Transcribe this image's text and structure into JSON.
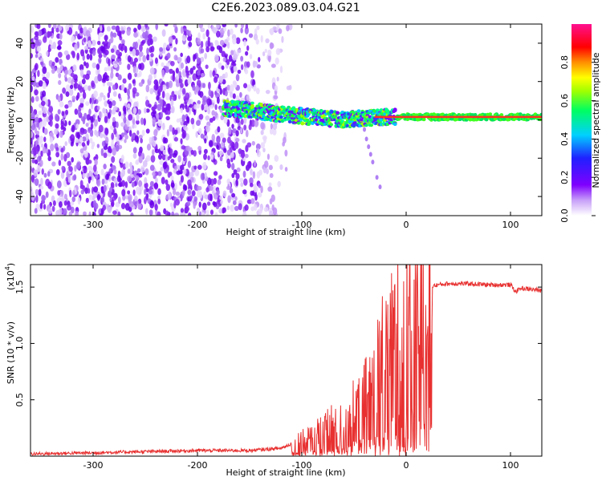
{
  "title": "C2E6.2023.089.03.04.G21",
  "chart_data": [
    {
      "type": "heatmap",
      "xlabel": "Height of straight line (km)",
      "ylabel": "Frequency (Hz)",
      "xlim": [
        -360,
        130
      ],
      "ylim": [
        -50,
        50
      ],
      "xticks": [
        "-300",
        "-200",
        "-100",
        "0",
        "100"
      ],
      "yticks": [
        "-40",
        "-20",
        "0",
        "20",
        "40"
      ],
      "colorbar": {
        "label": "Normalized spectral amplitude",
        "range": [
          0.0,
          1.0
        ],
        "ticks": [
          "0.0",
          "0.2",
          "0.4",
          "0.6",
          "0.8"
        ],
        "colormap": "white-purple-blue-cyan-green-yellow-orange-red-magenta"
      },
      "features": {
        "noise_region_x": [
          -360,
          -130
        ],
        "signal_band": [
          {
            "x": -175,
            "y": 6
          },
          {
            "x": -150,
            "y": 5
          },
          {
            "x": -120,
            "y": 3
          },
          {
            "x": -100,
            "y": 2
          },
          {
            "x": -80,
            "y": 1
          },
          {
            "x": -60,
            "y": 0
          },
          {
            "x": -40,
            "y": 1
          },
          {
            "x": -20,
            "y": 1.5
          },
          {
            "x": 0,
            "y": 1.5
          },
          {
            "x": 50,
            "y": 1.5
          },
          {
            "x": 100,
            "y": 1.5
          },
          {
            "x": 130,
            "y": 1.5
          }
        ]
      }
    },
    {
      "type": "line",
      "xlabel": "Height of straight line (km)",
      "ylabel": "SNR (10 * v/v)",
      "multiplier_label": "(x10",
      "multiplier_exp": "4",
      "multiplier_close": ")",
      "xlim": [
        -360,
        130
      ],
      "ylim": [
        0,
        1.7
      ],
      "xticks": [
        "-300",
        "-200",
        "-100",
        "0",
        "100"
      ],
      "yticks": [
        "0.5",
        "1.0",
        "1.5"
      ],
      "color": "#e83030",
      "series": [
        {
          "x": [
            -360,
            -300,
            -250,
            -200,
            -150,
            -120,
            -100,
            -80,
            -60,
            -50,
            -40,
            -30,
            -25,
            -20,
            -15,
            -10,
            -5,
            0,
            5,
            10,
            20,
            30,
            40,
            60,
            80,
            100,
            105,
            110,
            130
          ],
          "y": [
            0.02,
            0.03,
            0.04,
            0.05,
            0.05,
            0.07,
            0.15,
            0.25,
            0.35,
            0.45,
            0.55,
            0.75,
            0.9,
            1.0,
            1.1,
            1.2,
            1.3,
            1.4,
            1.42,
            1.45,
            1.5,
            1.52,
            1.53,
            1.53,
            1.52,
            1.52,
            1.46,
            1.49,
            1.47
          ]
        }
      ]
    }
  ]
}
